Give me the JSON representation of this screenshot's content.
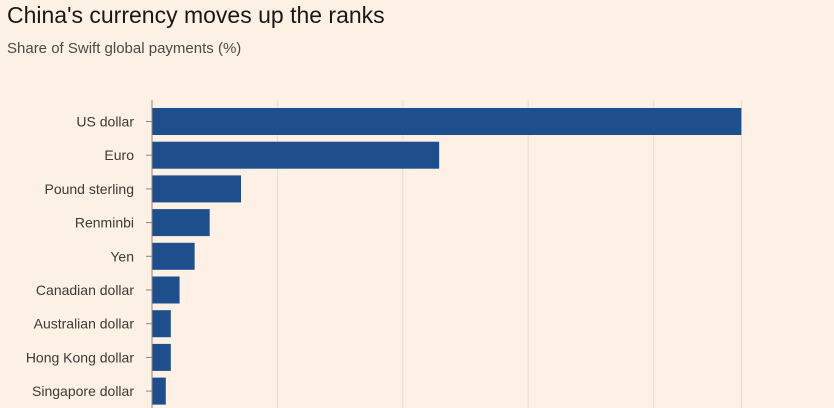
{
  "title": "China's currency moves up the ranks",
  "subtitle": "Share of Swift global payments (%)",
  "colors": {
    "background": "#fdf1e6",
    "bar": "#1f4e8c",
    "gridline": "#e8dccf",
    "axis": "#8a847e"
  },
  "chart_data": {
    "type": "bar",
    "orientation": "horizontal",
    "title": "China's currency moves up the ranks",
    "subtitle": "Share of Swift global payments (%)",
    "categories": [
      "US dollar",
      "Euro",
      "Pound sterling",
      "Renminbi",
      "Yen",
      "Canadian dollar",
      "Australian dollar",
      "Hong Kong dollar",
      "Singapore dollar"
    ],
    "values": [
      47.0,
      22.9,
      7.1,
      4.6,
      3.4,
      2.2,
      1.5,
      1.5,
      1.1
    ],
    "xlim": [
      0,
      50
    ],
    "gridlines_at": [
      10,
      20,
      30,
      40,
      47
    ],
    "grid": true,
    "legend": "none"
  }
}
